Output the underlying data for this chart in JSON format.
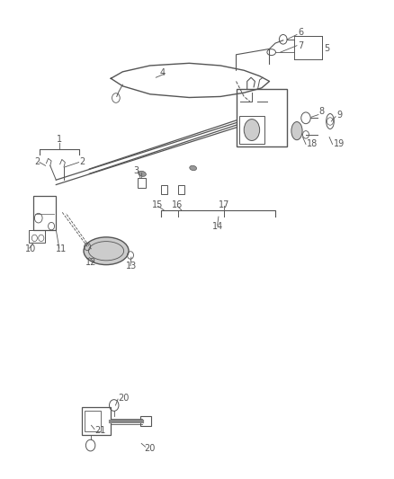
{
  "bg_color": "#ffffff",
  "line_color": "#555555",
  "text_color": "#555555",
  "fig_width": 4.38,
  "fig_height": 5.33,
  "dpi": 100,
  "label_fs": 7
}
